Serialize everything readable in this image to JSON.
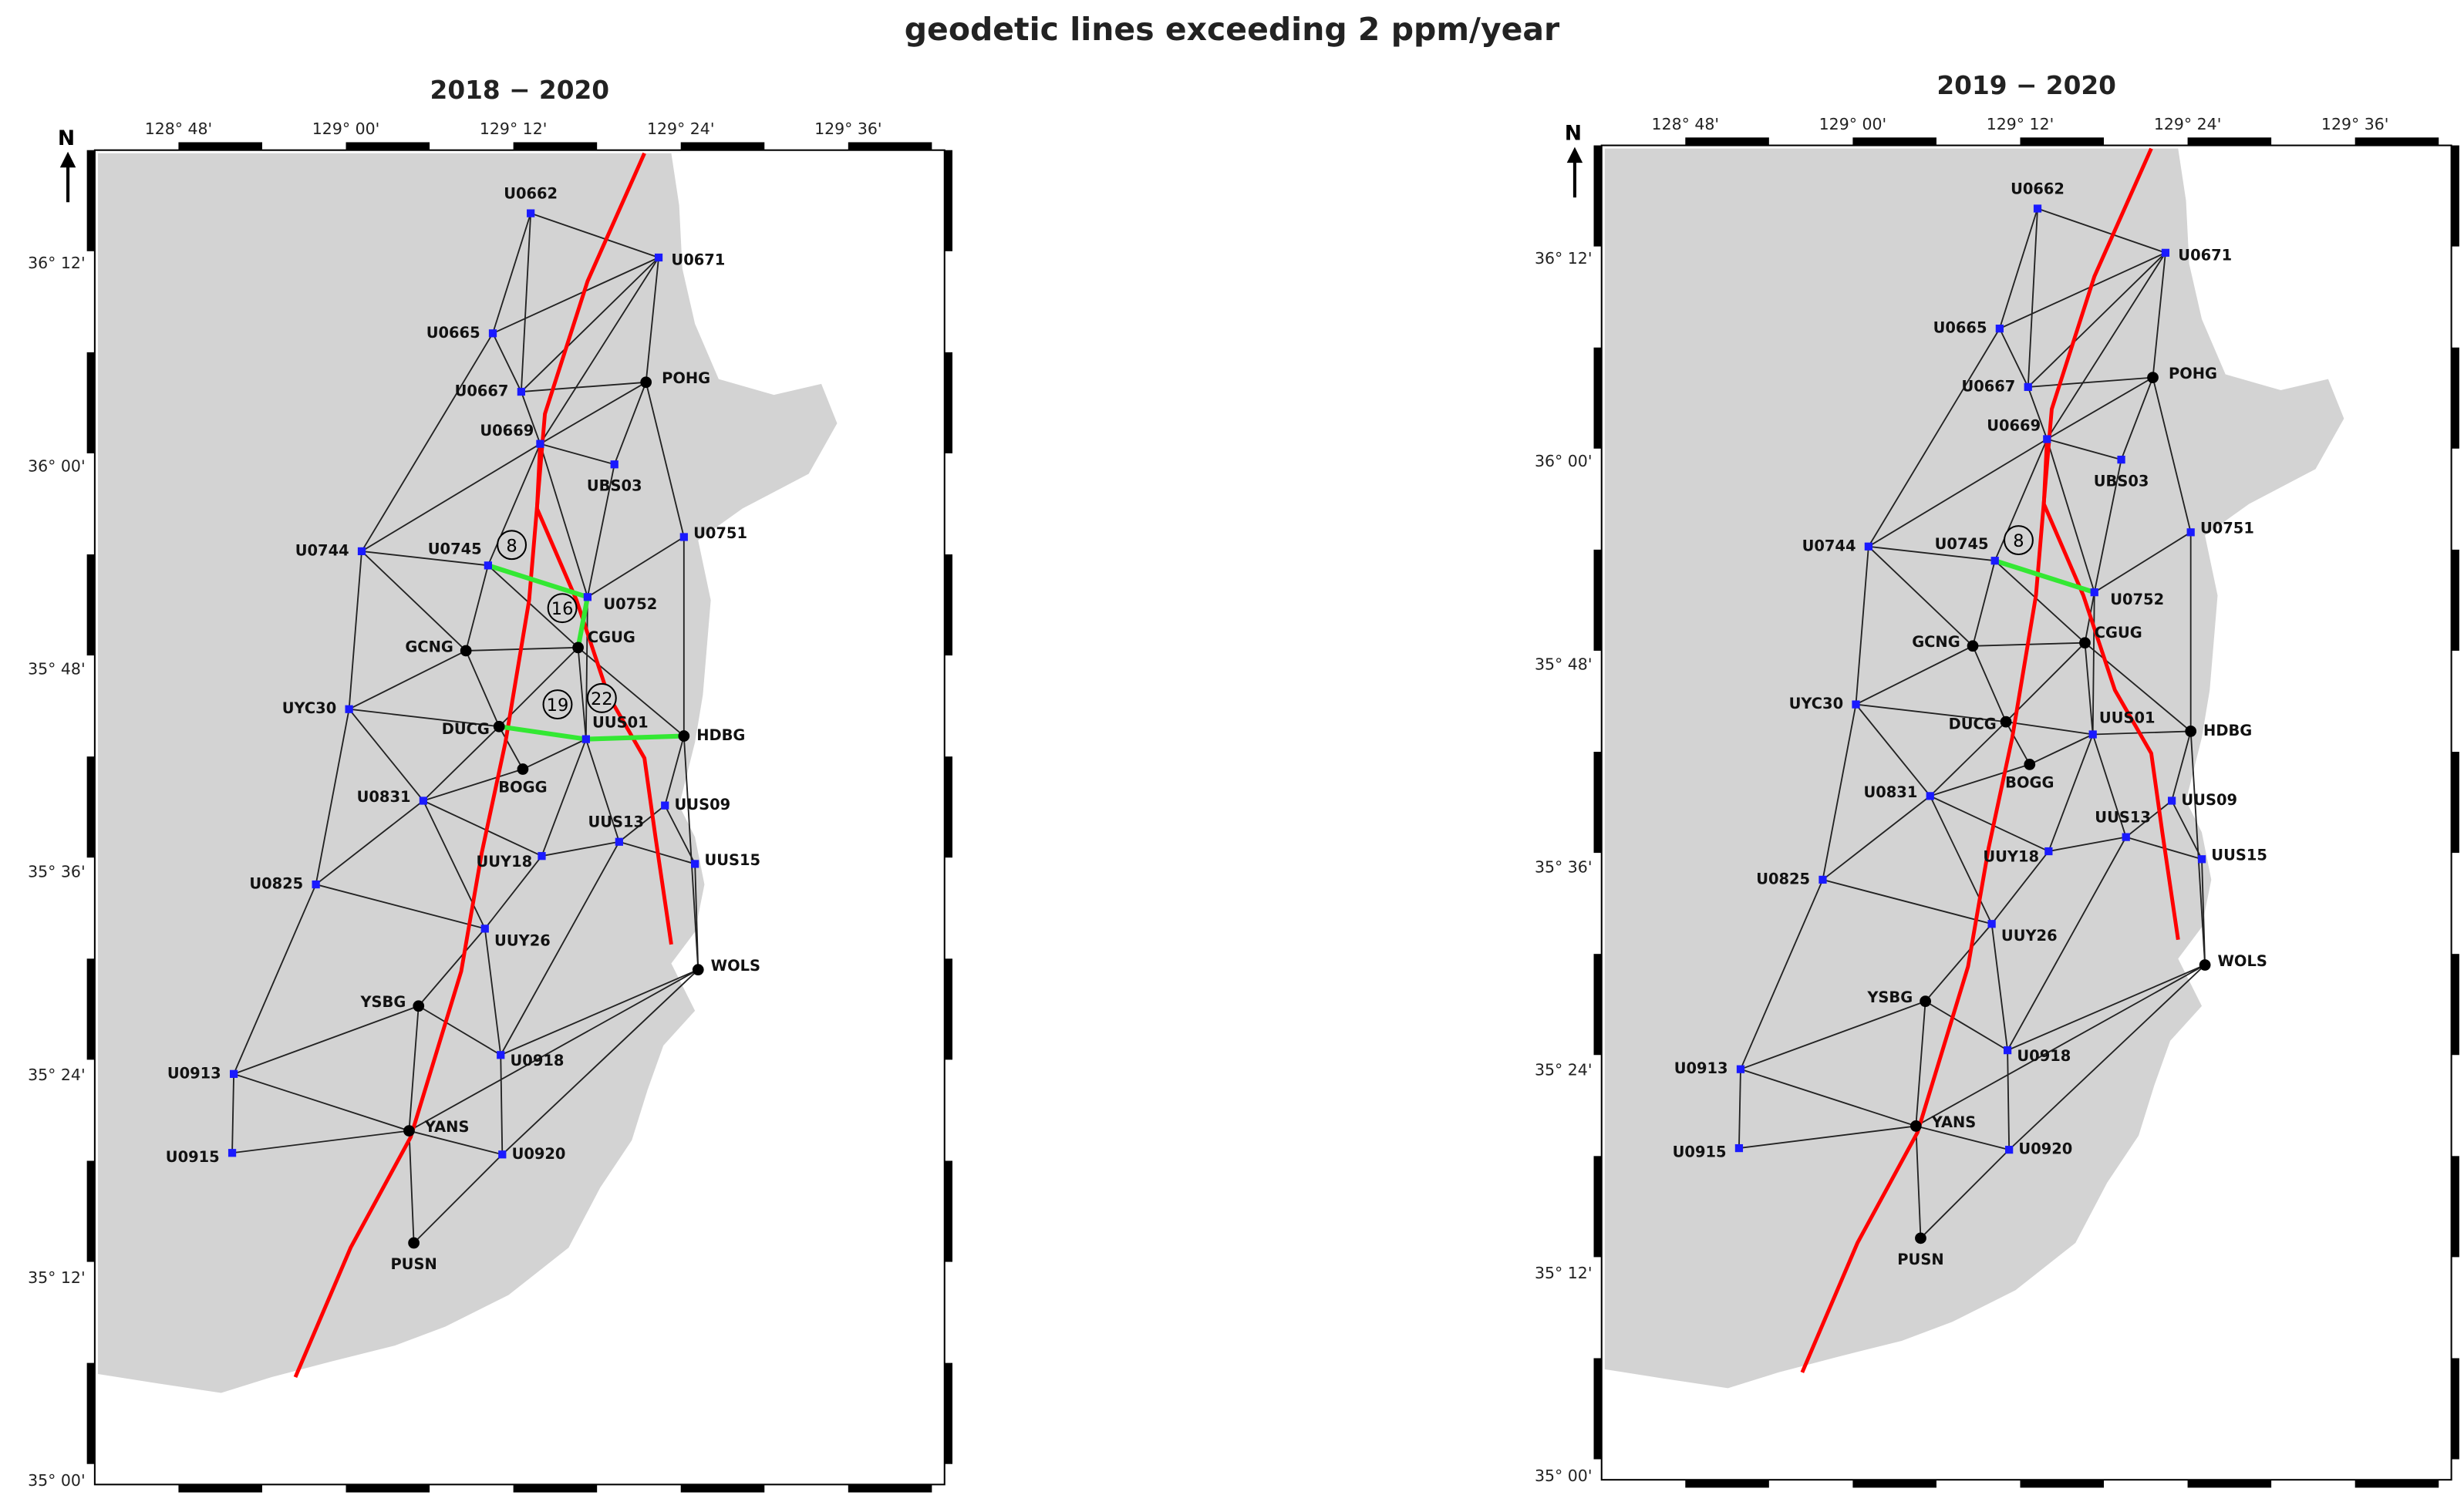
{
  "title": "geodetic lines exceeding 2 ppm/year",
  "north_label": "N",
  "land_color": "#d3d3d3",
  "fault_color": "#ff0000",
  "exceeding_line_color": "#33e833",
  "maps": [
    {
      "title": "2018 − 2020",
      "lon_labels": [
        "128° 48'",
        "129° 00'",
        "129° 12'",
        "129° 24'",
        "129° 36'"
      ],
      "lat_labels": [
        "36° 12'",
        "36° 00'",
        "35° 48'",
        "35° 36'",
        "35° 24'",
        "35° 12'",
        "35° 00'"
      ],
      "annotations": [
        "8",
        "16",
        "19",
        "22"
      ],
      "stations": [
        {
          "label": "U0662",
          "color": "#1a1aff"
        },
        {
          "label": "U0671",
          "color": "#1a1aff"
        },
        {
          "label": "U0665",
          "color": "#1a1aff"
        },
        {
          "label": "U0667",
          "color": "#1a1aff"
        },
        {
          "label": "POHG",
          "color": "#000000"
        },
        {
          "label": "U0669",
          "color": "#1a1aff"
        },
        {
          "label": "UBS03",
          "color": "#1a1aff"
        },
        {
          "label": "U0751",
          "color": "#1a1aff"
        },
        {
          "label": "U0744",
          "color": "#1a1aff"
        },
        {
          "label": "U0745",
          "color": "#1a1aff"
        },
        {
          "label": "U0752",
          "color": "#1a1aff"
        },
        {
          "label": "GCNG",
          "color": "#000000"
        },
        {
          "label": "CGUG",
          "color": "#000000"
        },
        {
          "label": "UYC30",
          "color": "#1a1aff"
        },
        {
          "label": "DUCG",
          "color": "#000000"
        },
        {
          "label": "UUS01",
          "color": "#1a1aff"
        },
        {
          "label": "HDBG",
          "color": "#000000"
        },
        {
          "label": "BOGG",
          "color": "#000000"
        },
        {
          "label": "U0831",
          "color": "#1a1aff"
        },
        {
          "label": "UUS09",
          "color": "#1a1aff"
        },
        {
          "label": "UUS13",
          "color": "#1a1aff"
        },
        {
          "label": "UUY18",
          "color": "#1a1aff"
        },
        {
          "label": "UUS15",
          "color": "#1a1aff"
        },
        {
          "label": "U0825",
          "color": "#1a1aff"
        },
        {
          "label": "UUY26",
          "color": "#1a1aff"
        },
        {
          "label": "WOLS",
          "color": "#000000"
        },
        {
          "label": "YSBG",
          "color": "#000000"
        },
        {
          "label": "U0918",
          "color": "#1a1aff"
        },
        {
          "label": "U0913",
          "color": "#1a1aff"
        },
        {
          "label": "YANS",
          "color": "#000000"
        },
        {
          "label": "U0920",
          "color": "#1a1aff"
        },
        {
          "label": "U0915",
          "color": "#1a1aff"
        },
        {
          "label": "PUSN",
          "color": "#000000"
        }
      ]
    },
    {
      "title": "2019 − 2020",
      "lon_labels": [
        "128° 48'",
        "129° 00'",
        "129° 12'",
        "129° 24'",
        "129° 36'"
      ],
      "lat_labels": [
        "36° 12'",
        "36° 00'",
        "35° 48'",
        "35° 36'",
        "35° 24'",
        "35° 12'",
        "35° 00'"
      ],
      "annotations": [
        "8"
      ],
      "stations": [
        {
          "label": "U0662",
          "color": "#1a1aff"
        },
        {
          "label": "U0671",
          "color": "#1a1aff"
        },
        {
          "label": "U0665",
          "color": "#1a1aff"
        },
        {
          "label": "U0667",
          "color": "#1a1aff"
        },
        {
          "label": "POHG",
          "color": "#000000"
        },
        {
          "label": "U0669",
          "color": "#1a1aff"
        },
        {
          "label": "UBS03",
          "color": "#1a1aff"
        },
        {
          "label": "U0751",
          "color": "#1a1aff"
        },
        {
          "label": "U0744",
          "color": "#1a1aff"
        },
        {
          "label": "U0745",
          "color": "#1a1aff"
        },
        {
          "label": "U0752",
          "color": "#1a1aff"
        },
        {
          "label": "GCNG",
          "color": "#000000"
        },
        {
          "label": "CGUG",
          "color": "#000000"
        },
        {
          "label": "UYC30",
          "color": "#1a1aff"
        },
        {
          "label": "DUCG",
          "color": "#000000"
        },
        {
          "label": "UUS01",
          "color": "#1a1aff"
        },
        {
          "label": "HDBG",
          "color": "#000000"
        },
        {
          "label": "BOGG",
          "color": "#000000"
        },
        {
          "label": "U0831",
          "color": "#1a1aff"
        },
        {
          "label": "UUS09",
          "color": "#1a1aff"
        },
        {
          "label": "UUS13",
          "color": "#1a1aff"
        },
        {
          "label": "UUY18",
          "color": "#1a1aff"
        },
        {
          "label": "UUS15",
          "color": "#1a1aff"
        },
        {
          "label": "U0825",
          "color": "#1a1aff"
        },
        {
          "label": "UUY26",
          "color": "#1a1aff"
        },
        {
          "label": "WOLS",
          "color": "#000000"
        },
        {
          "label": "YSBG",
          "color": "#000000"
        },
        {
          "label": "U0918",
          "color": "#1a1aff"
        },
        {
          "label": "U0913",
          "color": "#1a1aff"
        },
        {
          "label": "YANS",
          "color": "#000000"
        },
        {
          "label": "U0920",
          "color": "#1a1aff"
        },
        {
          "label": "U0915",
          "color": "#1a1aff"
        },
        {
          "label": "PUSN",
          "color": "#000000"
        }
      ]
    }
  ]
}
